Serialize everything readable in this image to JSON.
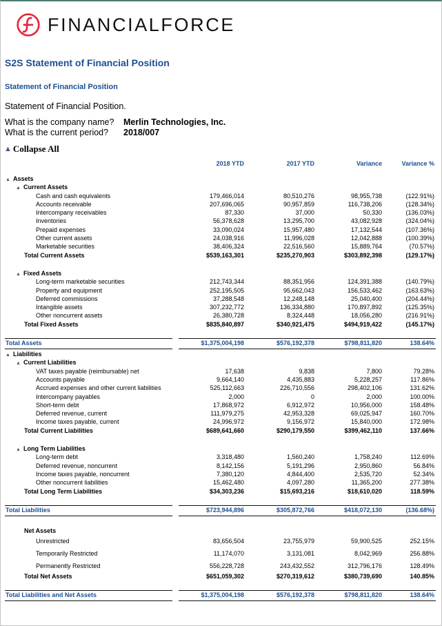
{
  "brand": {
    "name": "FINANCIALFORCE",
    "color": "#e8253f"
  },
  "title": "S2S Statement of Financial Position",
  "subtitle": "Statement of Financial Position",
  "description": "Statement of Financial Position.",
  "questions": [
    {
      "q": "What is the company name?",
      "a": "Merlin Technologies, Inc."
    },
    {
      "q": "What is the current period?",
      "a": "2018/007"
    }
  ],
  "collapse_all": "Collapse All",
  "columns": [
    "2018 YTD",
    "2017 YTD",
    "Variance",
    "Variance %"
  ],
  "rows": [
    {
      "type": "l0",
      "label": "Assets",
      "toggle": true
    },
    {
      "type": "l1",
      "label": "Current Assets",
      "toggle": true
    },
    {
      "type": "l2",
      "label": "Cash and cash equivalents",
      "v": [
        "179,466,014",
        "80,510,276",
        "98,955,738",
        "(122.91%)"
      ]
    },
    {
      "type": "l2",
      "label": "Accounts receivable",
      "v": [
        "207,696,065",
        "90,957,859",
        "116,738,206",
        "(128.34%)"
      ]
    },
    {
      "type": "l2",
      "label": "Intercompany receivables",
      "v": [
        "87,330",
        "37,000",
        "50,330",
        "(136.03%)"
      ]
    },
    {
      "type": "l2",
      "label": "Inventories",
      "v": [
        "56,378,628",
        "13,295,700",
        "43,082,928",
        "(324.04%)"
      ]
    },
    {
      "type": "l2",
      "label": "Prepaid expenses",
      "v": [
        "33,090,024",
        "15,957,480",
        "17,132,544",
        "(107.36%)"
      ]
    },
    {
      "type": "l2",
      "label": "Other current assets",
      "v": [
        "24,038,916",
        "11,996,028",
        "12,042,888",
        "(100.39%)"
      ]
    },
    {
      "type": "l2",
      "label": "Marketable securities",
      "v": [
        "38,406,324",
        "22,516,560",
        "15,889,764",
        "(70.57%)"
      ]
    },
    {
      "type": "total",
      "label": "Total Current Assets",
      "v": [
        "$539,163,301",
        "$235,270,903",
        "$303,892,398",
        "(129.17%)"
      ]
    },
    {
      "type": "gap"
    },
    {
      "type": "l1",
      "label": "Fixed Assets",
      "toggle": true
    },
    {
      "type": "l2",
      "label": "Long-term marketable securities",
      "v": [
        "212,743,344",
        "88,351,956",
        "124,391,388",
        "(140.79%)"
      ]
    },
    {
      "type": "l2",
      "label": "Property and equipment",
      "v": [
        "252,195,505",
        "95,662,043",
        "156,533,462",
        "(163.63%)"
      ]
    },
    {
      "type": "l2",
      "label": "Deferred commissions",
      "v": [
        "37,288,548",
        "12,248,148",
        "25,040,400",
        "(204.44%)"
      ]
    },
    {
      "type": "l2",
      "label": "Intangible assets",
      "v": [
        "307,232,772",
        "136,334,880",
        "170,897,892",
        "(125.35%)"
      ]
    },
    {
      "type": "l2",
      "label": "Other noncurrent assets",
      "v": [
        "26,380,728",
        "8,324,448",
        "18,056,280",
        "(216.91%)"
      ]
    },
    {
      "type": "total",
      "label": "Total Fixed Assets",
      "v": [
        "$835,840,897",
        "$340,921,475",
        "$494,919,422",
        "(145.17%)"
      ]
    },
    {
      "type": "gap"
    },
    {
      "type": "grand",
      "label": "Total Assets",
      "v": [
        "$1,375,004,198",
        "$576,192,378",
        "$798,811,820",
        "138.64%"
      ]
    },
    {
      "type": "l0",
      "label": "Liabilities",
      "toggle": true
    },
    {
      "type": "l1",
      "label": "Current Liabilities",
      "toggle": true
    },
    {
      "type": "l2",
      "label": "VAT taxes payable (reimbursable) net",
      "v": [
        "17,638",
        "9,838",
        "7,800",
        "79.28%"
      ]
    },
    {
      "type": "l2",
      "label": "Accounts payable",
      "v": [
        "9,664,140",
        "4,435,883",
        "5,228,257",
        "117.86%"
      ]
    },
    {
      "type": "l2",
      "label": "Accrued expenses and other current liabilities",
      "v": [
        "525,112,663",
        "226,710,556",
        "298,402,106",
        "131.62%"
      ]
    },
    {
      "type": "l2",
      "label": "Intercompany payables",
      "v": [
        "2,000",
        "0",
        "2,000",
        "100.00%"
      ]
    },
    {
      "type": "l2",
      "label": "Short-term debt",
      "v": [
        "17,868,972",
        "6,912,972",
        "10,956,000",
        "158.48%"
      ]
    },
    {
      "type": "l2",
      "label": "Deferred revenue, current",
      "v": [
        "111,979,275",
        "42,953,328",
        "69,025,947",
        "160.70%"
      ]
    },
    {
      "type": "l2",
      "label": "Income taxes payable, current",
      "v": [
        "24,996,972",
        "9,156,972",
        "15,840,000",
        "172.98%"
      ]
    },
    {
      "type": "total",
      "label": "Total Current Liabilities",
      "v": [
        "$689,641,660",
        "$290,179,550",
        "$399,462,110",
        "137.66%"
      ]
    },
    {
      "type": "gap"
    },
    {
      "type": "l1",
      "label": "Long Term Liabilities",
      "toggle": true
    },
    {
      "type": "l2",
      "label": "Long-term debt",
      "v": [
        "3,318,480",
        "1,560,240",
        "1,758,240",
        "112.69%"
      ]
    },
    {
      "type": "l2",
      "label": "Deferred revenue, noncurrent",
      "v": [
        "8,142,156",
        "5,191,296",
        "2,950,860",
        "56.84%"
      ]
    },
    {
      "type": "l2",
      "label": "Income taxes payable, noncurrent",
      "v": [
        "7,380,120",
        "4,844,400",
        "2,535,720",
        "52.34%"
      ]
    },
    {
      "type": "l2",
      "label": "Other noncurrent liabilities",
      "v": [
        "15,462,480",
        "4,097,280",
        "11,365,200",
        "277.38%"
      ]
    },
    {
      "type": "total",
      "label": "Total Long Term Liabilities",
      "v": [
        "$34,303,236",
        "$15,693,216",
        "$18,610,020",
        "118.59%"
      ]
    },
    {
      "type": "gap"
    },
    {
      "type": "grand",
      "label": "Total Liabilities",
      "v": [
        "$723,944,896",
        "$305,872,766",
        "$418,072,130",
        "(136.68%)"
      ]
    },
    {
      "type": "gap"
    },
    {
      "type": "l1",
      "label": "Net Assets",
      "toggle": false
    },
    {
      "type": "l2",
      "label": "Unrestricted",
      "v": [
        "83,656,504",
        "23,755,979",
        "59,900,525",
        "252.15%"
      ],
      "tall": true
    },
    {
      "type": "l2",
      "label": "Temporarily Restricted",
      "v": [
        "11,174,070",
        "3,131,081",
        "8,042,969",
        "256.88%"
      ],
      "tall": true
    },
    {
      "type": "l2",
      "label": "Permanently Restricted",
      "v": [
        "556,228,728",
        "243,432,552",
        "312,796,176",
        "128.49%"
      ],
      "tall": true
    },
    {
      "type": "total",
      "label": "Total Net Assets",
      "v": [
        "$651,059,302",
        "$270,319,612",
        "$380,739,690",
        "140.85%"
      ]
    },
    {
      "type": "gap"
    },
    {
      "type": "grand",
      "label": "Total Liabilities and Net Assets",
      "v": [
        "$1,375,004,198",
        "$576,192,378",
        "$798,811,820",
        "138.64%"
      ]
    }
  ]
}
